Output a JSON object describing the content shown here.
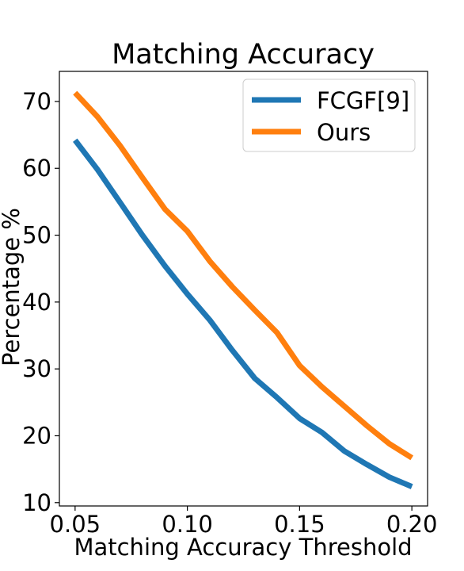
{
  "chart_data": {
    "type": "line",
    "title": "Matching Accuracy",
    "xlabel": "Matching Accuracy Threshold",
    "ylabel": "Percentage %",
    "xlim": [
      0.043,
      0.207
    ],
    "ylim": [
      9.5,
      74.5
    ],
    "xticks": [
      {
        "value": 0.05,
        "label": "0.05"
      },
      {
        "value": 0.1,
        "label": "0.10"
      },
      {
        "value": 0.15,
        "label": "0.15"
      },
      {
        "value": 0.2,
        "label": "0.20"
      }
    ],
    "yticks": [
      {
        "value": 10,
        "label": "10"
      },
      {
        "value": 20,
        "label": "20"
      },
      {
        "value": 30,
        "label": "30"
      },
      {
        "value": 40,
        "label": "40"
      },
      {
        "value": 50,
        "label": "50"
      },
      {
        "value": 60,
        "label": "60"
      },
      {
        "value": 70,
        "label": "70"
      }
    ],
    "x": [
      0.05,
      0.06,
      0.07,
      0.08,
      0.09,
      0.1,
      0.11,
      0.12,
      0.13,
      0.14,
      0.15,
      0.16,
      0.17,
      0.18,
      0.19,
      0.2
    ],
    "series": [
      {
        "name": "FCGF[9]",
        "color": "#1f77b4",
        "values": [
          64.2,
          59.8,
          54.9,
          50.0,
          45.4,
          41.2,
          37.3,
          32.8,
          28.6,
          25.7,
          22.6,
          20.5,
          17.7,
          15.7,
          13.8,
          12.4
        ]
      },
      {
        "name": "Ours",
        "color": "#ff7f0e",
        "values": [
          71.3,
          67.7,
          63.4,
          58.6,
          53.9,
          50.6,
          46.1,
          42.3,
          38.8,
          35.4,
          30.5,
          27.3,
          24.4,
          21.5,
          18.8,
          16.7
        ]
      }
    ],
    "grid": false,
    "legend_position": "top-right"
  }
}
